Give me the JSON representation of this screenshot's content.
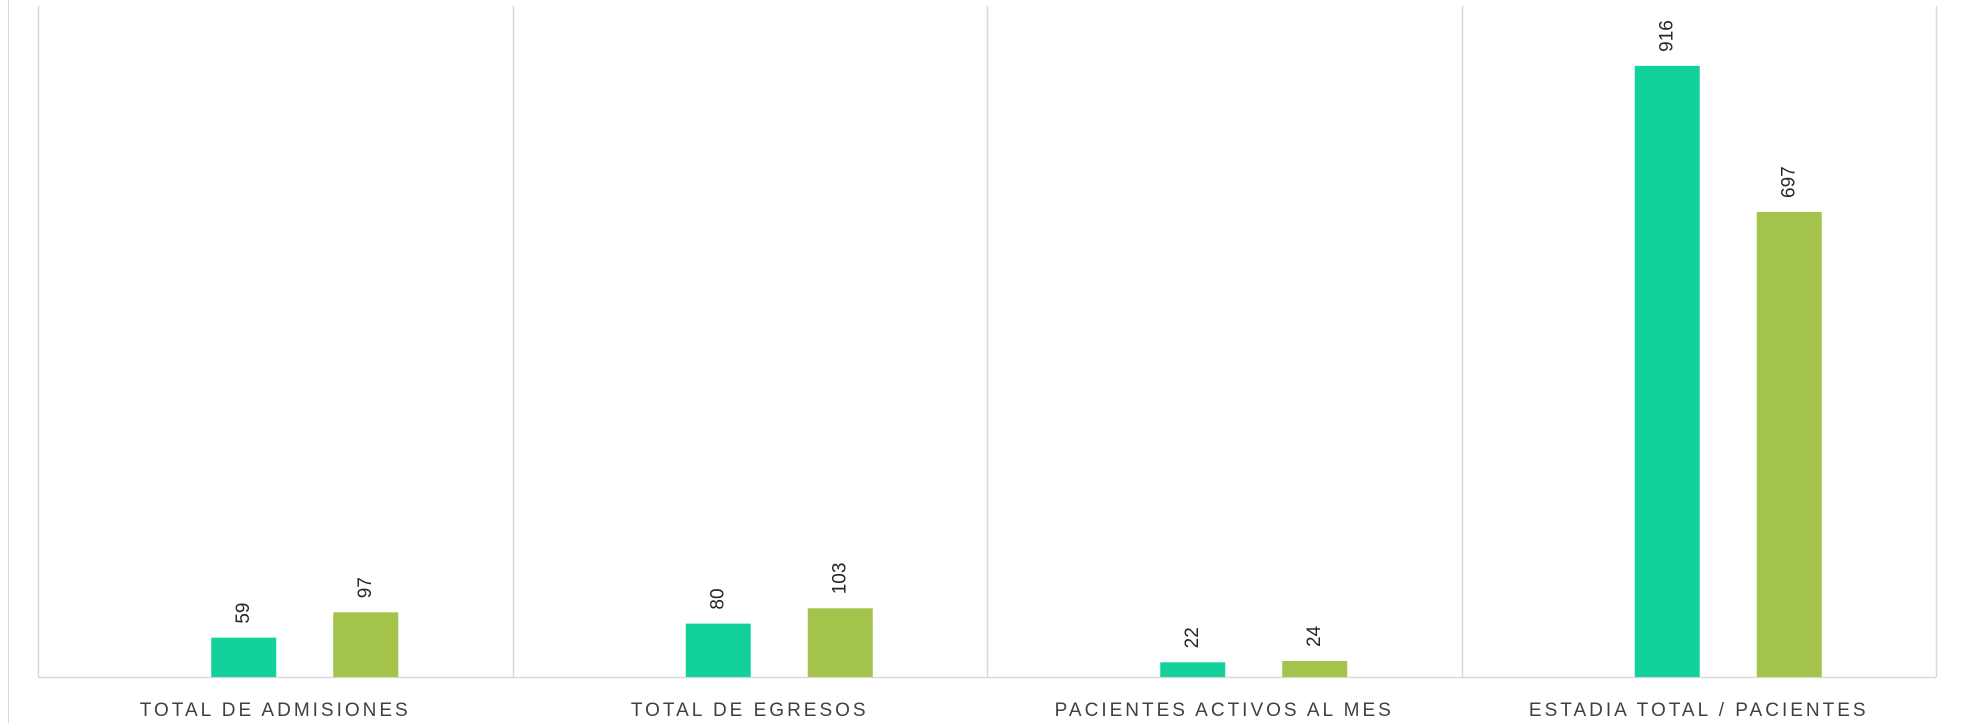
{
  "chart_data": {
    "type": "bar",
    "categories": [
      "TOTAL DE ADMISIONES",
      "TOTAL DE EGRESOS",
      "PACIENTES ACTIVOS AL MES",
      "ESTADIA TOTAL / PACIENTES"
    ],
    "series": [
      {
        "values": [
          59,
          80,
          22,
          916
        ],
        "color": "#12d19a"
      },
      {
        "values": [
          97,
          103,
          24,
          697
        ],
        "color": "#a4c34a"
      }
    ],
    "title": "",
    "xlabel": "",
    "ylabel": "",
    "ylim": [
      0,
      1000
    ],
    "data_labels": true,
    "data_label_rotation": "vertical",
    "grid": "vertical category separators",
    "legend": "none"
  },
  "colors": {
    "axis": "#d9d9d9",
    "separator": "#d9d9d9",
    "label_text": "#404040",
    "data_label_text": "#262626"
  }
}
